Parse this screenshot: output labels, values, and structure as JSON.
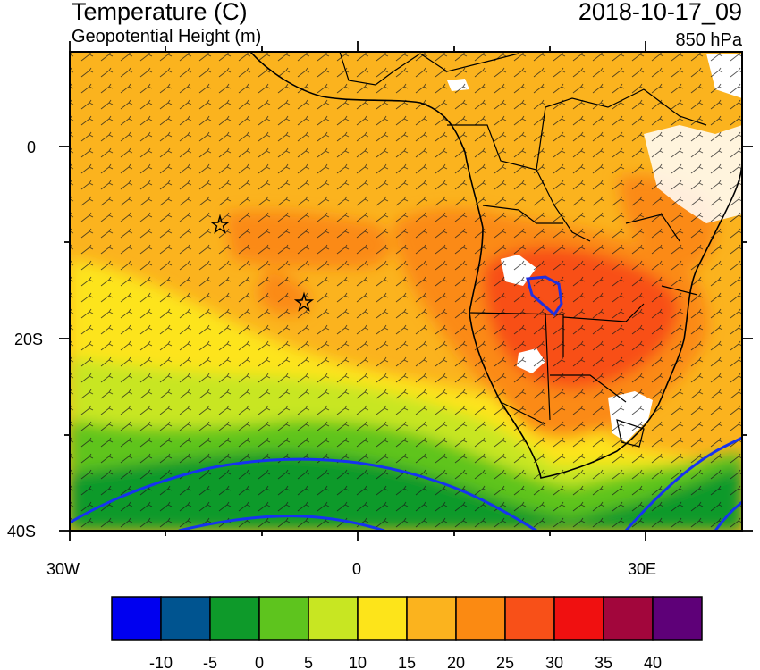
{
  "header": {
    "title": "Temperature (C)",
    "subtitle": "Geopotential Height (m)",
    "datetime": "2018-10-17_09",
    "level": "850 hPa"
  },
  "axes": {
    "lat_labels": [
      "0",
      "20S",
      "40S"
    ],
    "lon_labels": [
      "30W",
      "0",
      "30E"
    ]
  },
  "markers": [
    "star",
    "star"
  ],
  "colorbar": {
    "colors": [
      "#0000f0",
      "#005490",
      "#0e9a2a",
      "#5ec41e",
      "#c8e622",
      "#fde41a",
      "#fbb31e",
      "#fb8a12",
      "#f85018",
      "#f01010",
      "#a2063c",
      "#5e0078"
    ],
    "labels": [
      "-10",
      "-5",
      "0",
      "5",
      "10",
      "15",
      "20",
      "25",
      "30",
      "35",
      "40"
    ]
  }
}
